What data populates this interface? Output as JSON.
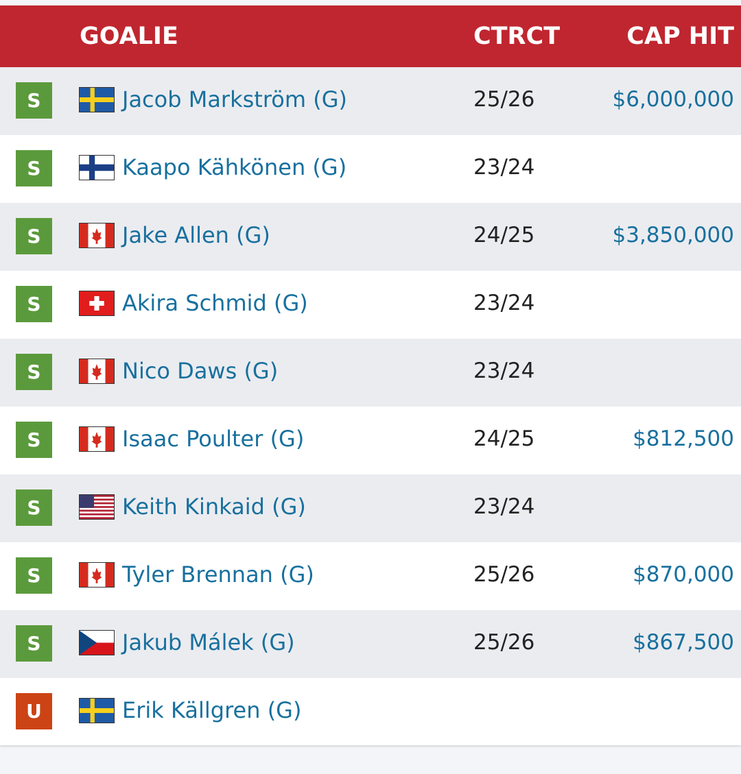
{
  "header": {
    "goalie": "GOALIE",
    "ctrct": "CTRCT",
    "cap_hit": "CAP HIT"
  },
  "colors": {
    "header_bg": "#c0262f",
    "badge_signed": "#5b9a3c",
    "badge_unsigned": "#cc4415",
    "link": "#18709e"
  },
  "rows": [
    {
      "status": "S",
      "flag": "sweden-flag-icon",
      "name": "Jacob Markström (G)",
      "ctrct": "25/26",
      "cap": "$6,000,000"
    },
    {
      "status": "S",
      "flag": "finland-flag-icon",
      "name": "Kaapo Kähkönen (G)",
      "ctrct": "23/24",
      "cap": ""
    },
    {
      "status": "S",
      "flag": "canada-flag-icon",
      "name": "Jake Allen (G)",
      "ctrct": "24/25",
      "cap": "$3,850,000"
    },
    {
      "status": "S",
      "flag": "switzerland-flag-icon",
      "name": "Akira Schmid (G)",
      "ctrct": "23/24",
      "cap": ""
    },
    {
      "status": "S",
      "flag": "canada-flag-icon",
      "name": "Nico Daws (G)",
      "ctrct": "23/24",
      "cap": ""
    },
    {
      "status": "S",
      "flag": "canada-flag-icon",
      "name": "Isaac Poulter (G)",
      "ctrct": "24/25",
      "cap": "$812,500"
    },
    {
      "status": "S",
      "flag": "usa-flag-icon",
      "name": "Keith Kinkaid (G)",
      "ctrct": "23/24",
      "cap": ""
    },
    {
      "status": "S",
      "flag": "canada-flag-icon",
      "name": "Tyler Brennan (G)",
      "ctrct": "25/26",
      "cap": "$870,000"
    },
    {
      "status": "S",
      "flag": "czech-flag-icon",
      "name": "Jakub Málek (G)",
      "ctrct": "25/26",
      "cap": "$867,500"
    },
    {
      "status": "U",
      "flag": "sweden-flag-icon",
      "name": "Erik Källgren (G)",
      "ctrct": "",
      "cap": ""
    }
  ]
}
